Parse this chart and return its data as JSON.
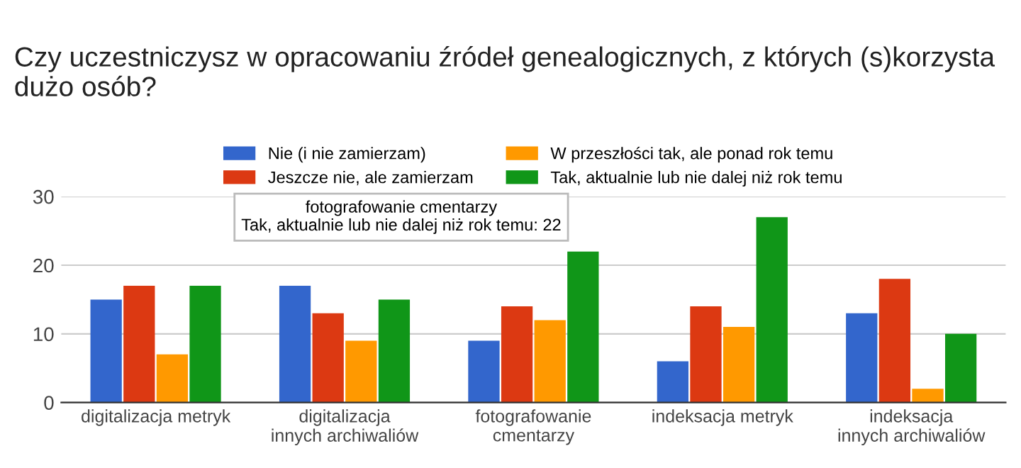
{
  "chart_data": {
    "type": "bar",
    "title": "Czy uczestniczysz w opracowaniu źródeł genealogicznych, z których (s)korzysta dużo osób?",
    "categories": [
      "digitalizacja metryk",
      "digitalizacja innych archiwaliów",
      "fotografowanie cmentarzy",
      "indeksacja metryk",
      "indeksacja innych archiwaliów"
    ],
    "series": [
      {
        "name": "Nie (i nie zamierzam)",
        "color": "#3366cc",
        "values": [
          15,
          17,
          9,
          6,
          13
        ]
      },
      {
        "name": "Jeszcze nie, ale zamierzam",
        "color": "#dc3912",
        "values": [
          17,
          13,
          14,
          14,
          18
        ]
      },
      {
        "name": "W przeszłości tak, ale ponad rok temu",
        "color": "#ff9900",
        "values": [
          7,
          9,
          12,
          11,
          2
        ]
      },
      {
        "name": "Tak, aktualnie lub nie dalej niż rok temu",
        "color": "#109618",
        "values": [
          17,
          15,
          22,
          27,
          10
        ]
      }
    ],
    "ylim": [
      0,
      30
    ],
    "yticks": [
      0,
      10,
      20,
      30
    ],
    "grid": "y",
    "legend": "top",
    "annotations": [
      "fotografowanie cmentarzy\nTak, aktualnie lub nie dalej niż rok temu: 22"
    ]
  }
}
